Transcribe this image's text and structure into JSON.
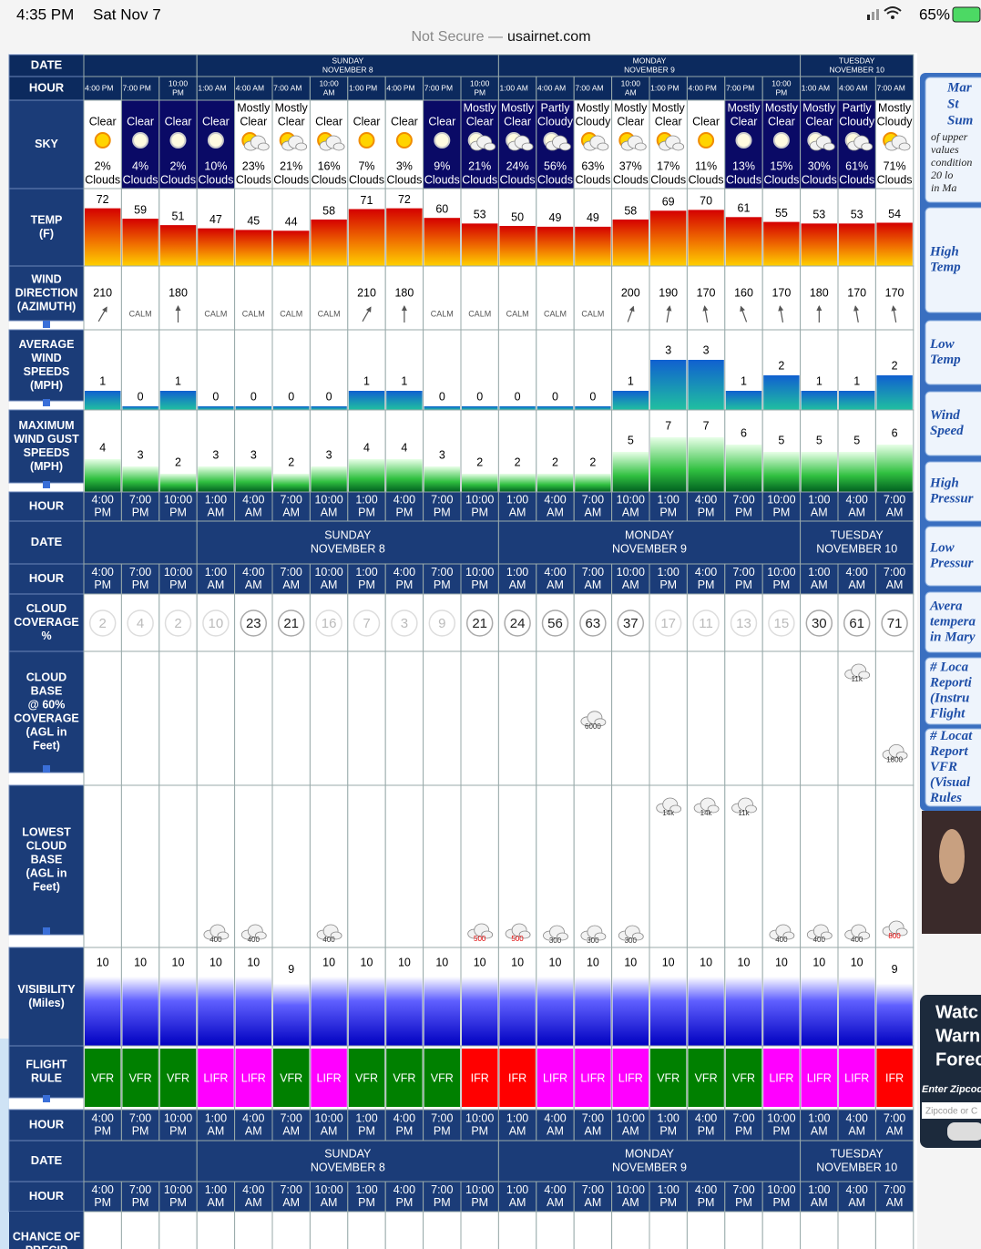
{
  "status": {
    "time": "4:35 PM",
    "day": "Sat Nov 7",
    "battery": "65%"
  },
  "address": {
    "security": "Not Secure —",
    "host": "usairnet.com"
  },
  "table": {
    "date_label": "DATE",
    "hour_label": "HOUR",
    "days": [
      {
        "hours": [
          [
            "4:00",
            "PM"
          ],
          [
            "7:00",
            "PM"
          ],
          [
            "10:00",
            "PM"
          ]
        ]
      },
      {
        "day": "SUNDAY",
        "date": "NOVEMBER 8",
        "hours": [
          [
            "1:00",
            "AM"
          ],
          [
            "4:00",
            "AM"
          ],
          [
            "7:00",
            "AM"
          ],
          [
            "10:00",
            "AM"
          ],
          [
            "1:00",
            "PM"
          ],
          [
            "4:00",
            "PM"
          ],
          [
            "7:00",
            "PM"
          ],
          [
            "10:00",
            "PM"
          ]
        ]
      },
      {
        "day": "MONDAY",
        "date": "NOVEMBER 9",
        "hours": [
          [
            "1:00",
            "AM"
          ],
          [
            "4:00",
            "AM"
          ],
          [
            "7:00",
            "AM"
          ],
          [
            "10:00",
            "AM"
          ],
          [
            "1:00",
            "PM"
          ],
          [
            "4:00",
            "PM"
          ],
          [
            "7:00",
            "PM"
          ],
          [
            "10:00",
            "PM"
          ]
        ]
      },
      {
        "day": "TUESDAY",
        "date": "NOVEMBER 10",
        "hours": [
          [
            "1:00",
            "AM"
          ],
          [
            "4:00",
            "AM"
          ],
          [
            "7:00",
            "AM"
          ]
        ]
      }
    ],
    "sky": {
      "label": [
        "SKY"
      ],
      "conditions": [
        [
          "Clear"
        ],
        [
          "Clear"
        ],
        [
          "Clear"
        ],
        [
          "Clear"
        ],
        [
          "Mostly",
          "Clear"
        ],
        [
          "Mostly",
          "Clear"
        ],
        [
          "Clear"
        ],
        [
          "Clear"
        ],
        [
          "Clear"
        ],
        [
          "Clear"
        ],
        [
          "Mostly",
          "Clear"
        ],
        [
          "Mostly",
          "Clear"
        ],
        [
          "Partly",
          "Cloudy"
        ],
        [
          "Mostly",
          "Cloudy"
        ],
        [
          "Mostly",
          "Clear"
        ],
        [
          "Mostly",
          "Clear"
        ],
        [
          "Clear"
        ],
        [
          "Mostly",
          "Clear"
        ],
        [
          "Mostly",
          "Clear"
        ],
        [
          "Mostly",
          "Clear"
        ],
        [
          "Partly",
          "Cloudy"
        ],
        [
          "Mostly",
          "Cloudy"
        ]
      ],
      "values": [
        2,
        4,
        2,
        10,
        23,
        21,
        16,
        7,
        3,
        9,
        21,
        24,
        56,
        63,
        37,
        17,
        11,
        13,
        15,
        30,
        61,
        71
      ],
      "value_labels": [
        "2%",
        "4%",
        "2%",
        "10%",
        "23%",
        "21%",
        "16%",
        "7%",
        "3%",
        "9%",
        "21%",
        "24%",
        "56%",
        "63%",
        "37%",
        "17%",
        "11%",
        "13%",
        "15%",
        "30%",
        "61%",
        "71%"
      ],
      "clouds_word": "Clouds",
      "night": [
        false,
        true,
        true,
        true,
        false,
        false,
        false,
        false,
        false,
        true,
        true,
        true,
        true,
        false,
        false,
        false,
        false,
        true,
        true,
        true,
        true,
        false
      ]
    },
    "temp": {
      "label": [
        "TEMP",
        "(F)"
      ],
      "values": [
        72,
        59,
        51,
        47,
        45,
        44,
        58,
        71,
        72,
        60,
        53,
        50,
        49,
        49,
        58,
        69,
        70,
        61,
        55,
        53,
        53,
        54
      ]
    },
    "wind_direction": {
      "label": [
        "WIND",
        "DIRECTION",
        "(AZIMUTH)"
      ],
      "values": [
        210,
        "CALM",
        180,
        "CALM",
        "CALM",
        "CALM",
        "CALM",
        210,
        180,
        "CALM",
        "CALM",
        "CALM",
        "CALM",
        "CALM",
        200,
        190,
        170,
        160,
        170,
        180,
        170,
        170
      ]
    },
    "avg_wind": {
      "label": [
        "AVERAGE",
        "WIND",
        "SPEEDS",
        "(MPH)"
      ],
      "values": [
        1,
        0,
        1,
        0,
        0,
        0,
        0,
        1,
        1,
        0,
        0,
        0,
        0,
        0,
        1,
        3,
        3,
        1,
        2,
        1,
        1,
        2
      ]
    },
    "wind_gust": {
      "label": [
        "MAXIMUM",
        "WIND GUST",
        "SPEEDS",
        "(MPH)"
      ],
      "values": [
        4,
        3,
        2,
        3,
        3,
        2,
        3,
        4,
        4,
        3,
        2,
        2,
        2,
        2,
        5,
        7,
        7,
        6,
        5,
        5,
        5,
        6
      ]
    },
    "cloud_coverage": {
      "label": [
        "CLOUD",
        "COVERAGE",
        "%"
      ],
      "values": [
        2,
        4,
        2,
        10,
        23,
        21,
        16,
        7,
        3,
        9,
        21,
        24,
        56,
        63,
        37,
        17,
        11,
        13,
        15,
        30,
        61,
        71
      ]
    },
    "cloud_base": {
      "label": [
        "CLOUD",
        "BASE",
        "@ 60%",
        "COVERAGE",
        "(AGL in",
        "Feet)"
      ],
      "values": [
        null,
        null,
        null,
        null,
        null,
        null,
        null,
        null,
        null,
        null,
        null,
        null,
        null,
        6000,
        null,
        null,
        null,
        null,
        null,
        null,
        "11k",
        1800
      ]
    },
    "lowest_cloud_base": {
      "label": [
        "LOWEST",
        "CLOUD",
        "BASE",
        "(AGL in",
        "Feet)"
      ],
      "values": [
        null,
        null,
        null,
        400,
        400,
        null,
        400,
        null,
        null,
        null,
        500,
        500,
        300,
        300,
        300,
        "14k",
        "14k",
        "11k",
        400,
        400,
        400,
        800
      ]
    },
    "visibility": {
      "label": [
        "VISIBILITY",
        "(Miles)"
      ],
      "values": [
        10,
        10,
        10,
        10,
        10,
        9,
        10,
        10,
        10,
        10,
        10,
        10,
        10,
        10,
        10,
        10,
        10,
        10,
        10,
        10,
        10,
        9
      ]
    },
    "flight_rule": {
      "label": [
        "FLIGHT",
        "RULE"
      ],
      "values": [
        "VFR",
        "VFR",
        "VFR",
        "LIFR",
        "LIFR",
        "VFR",
        "LIFR",
        "VFR",
        "VFR",
        "VFR",
        "IFR",
        "IFR",
        "LIFR",
        "LIFR",
        "LIFR",
        "VFR",
        "VFR",
        "VFR",
        "LIFR",
        "LIFR",
        "LIFR",
        "IFR"
      ],
      "colors": {
        "VFR": "#008000",
        "LIFR": "#ff00ff",
        "IFR": "#ff0000"
      }
    },
    "precip": {
      "label": [
        "CHANCE OF",
        "PRECIP"
      ]
    }
  },
  "sidebar": {
    "items": [
      [
        "Mar",
        "St",
        "Sum",
        "of upper",
        "values",
        "condition",
        "20 lo",
        "in Ma"
      ],
      [
        "High",
        "Temp"
      ],
      [
        "Low",
        "Temp"
      ],
      [
        "Wind",
        "Speed"
      ],
      [
        "High",
        "Pressur"
      ],
      [
        "Low",
        "Pressur"
      ],
      [
        "Avera",
        "tempera",
        "in Mary"
      ],
      [
        "# Loca",
        "Reporti",
        "(Instru",
        "Flight"
      ],
      [
        "# Locat",
        "Report",
        "VFR",
        "(Visual",
        "Rules"
      ]
    ],
    "widget": [
      "Watc",
      "Warn",
      "Forec"
    ],
    "zip_label": "Enter Zipcode",
    "zip_placeholder": "Zipcode or C"
  }
}
